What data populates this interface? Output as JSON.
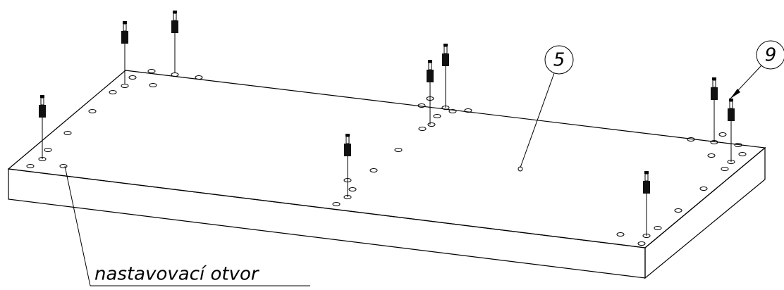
{
  "callouts": [
    {
      "label": "5"
    },
    {
      "label": "9"
    }
  ],
  "annotation": {
    "text": "nastavovací otvor"
  }
}
